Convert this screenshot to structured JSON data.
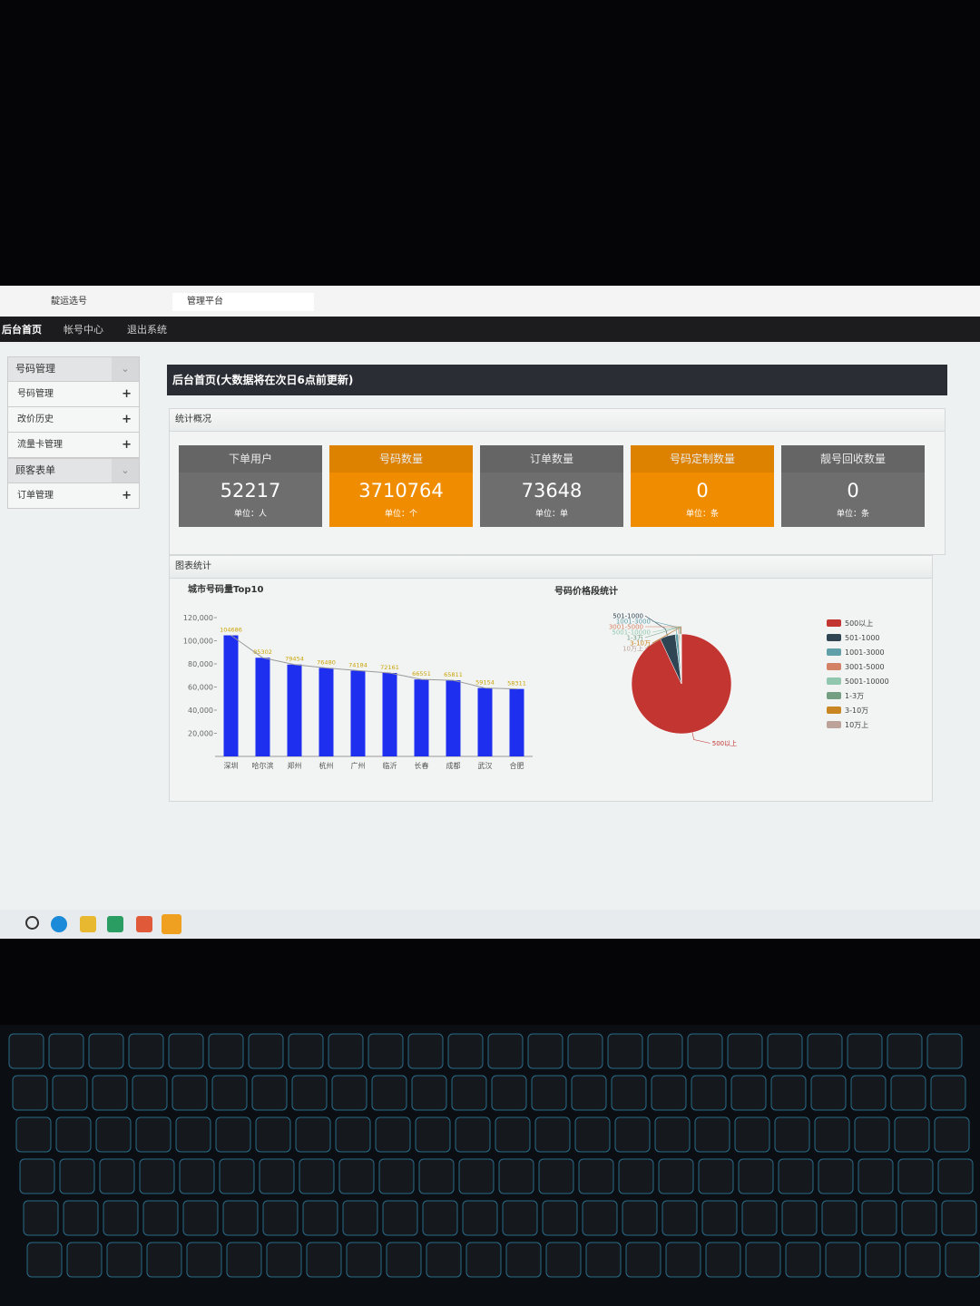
{
  "browser": {
    "tabs": [
      "靛运选号",
      "管理平台"
    ]
  },
  "nav": [
    "后台首页",
    "帐号中心",
    "退出系统"
  ],
  "sidebar": {
    "groups": [
      {
        "title": "号码管理",
        "items": [
          "号码管理",
          "改价历史",
          "流量卡管理"
        ]
      },
      {
        "title": "顾客表单",
        "items": [
          "订单管理"
        ]
      }
    ]
  },
  "page_title": "后台首页(大数据将在次日6点前更新)",
  "sections": {
    "overview": "统计概况",
    "charts": "图表统计"
  },
  "stats": [
    {
      "label": "下单用户",
      "value": 52217,
      "unit": "单位：人",
      "color": "#6e6e6e"
    },
    {
      "label": "号码数量",
      "value": 3710764,
      "unit": "单位：个",
      "color": "#f08c00"
    },
    {
      "label": "订单数量",
      "value": 73648,
      "unit": "单位：单",
      "color": "#6e6e6e"
    },
    {
      "label": "号码定制数量",
      "value": 0,
      "unit": "单位：条",
      "color": "#f08c00"
    },
    {
      "label": "靓号回收数量",
      "value": 0,
      "unit": "单位：条",
      "color": "#6e6e6e"
    }
  ],
  "chart_data": [
    {
      "type": "bar",
      "title": "城市号码量Top10",
      "categories": [
        "深圳",
        "哈尔滨",
        "郑州",
        "杭州",
        "广州",
        "临沂",
        "长春",
        "成都",
        "武汉",
        "合肥"
      ],
      "values": [
        104686,
        85302,
        79454,
        76480,
        74184,
        72161,
        66551,
        65811,
        59154,
        58311
      ],
      "color": "#1f2ff0",
      "line": true,
      "line_color": "#9a9a9a",
      "label_color": "#c9a200",
      "ylim": [
        0,
        120000
      ],
      "yticks": [
        {
          "value": 20000,
          "label": "20,000"
        },
        {
          "value": 40000,
          "label": "40,000"
        },
        {
          "value": 60000,
          "label": "60,000"
        },
        {
          "value": 80000,
          "label": "80,000"
        },
        {
          "value": 100000,
          "label": "100,000"
        },
        {
          "value": 120000,
          "label": "120,000"
        }
      ]
    },
    {
      "type": "pie",
      "title": "号码价格段统计",
      "categories": [
        "500以上",
        "501-1000",
        "1001-3000",
        "3001-5000",
        "5001-10000",
        "1-3万",
        "3-10万",
        "10万上"
      ],
      "values": [
        93,
        5,
        1,
        0.3,
        0.3,
        0.2,
        0.1,
        0.1
      ],
      "colors": [
        "#c23531",
        "#2f4554",
        "#61a0a8",
        "#d48265",
        "#91c7ae",
        "#749f83",
        "#ca8622",
        "#bda29a"
      ],
      "legend": "right"
    }
  ]
}
